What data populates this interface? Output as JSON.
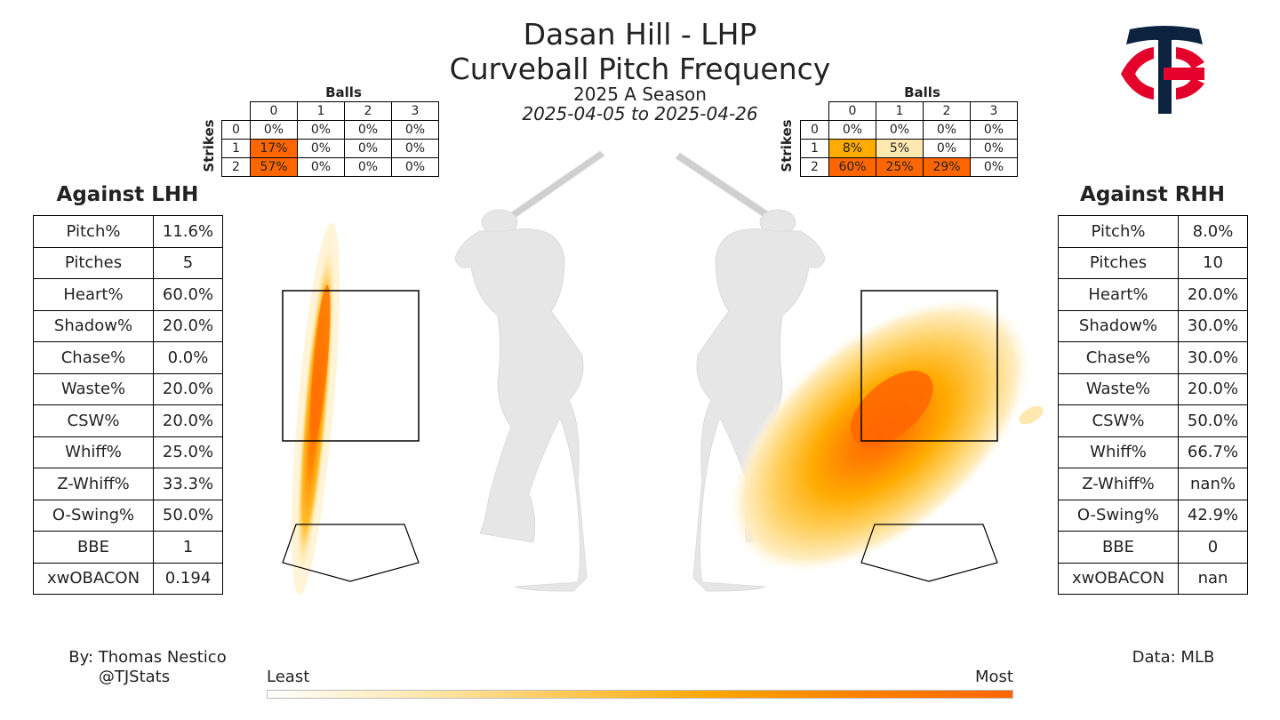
{
  "header": {
    "title": "Dasan Hill - LHP",
    "subtitle": "Curveball Pitch Frequency",
    "season": "2025 A Season",
    "date_range": "2025-04-05 to 2025-04-26"
  },
  "colors": {
    "heat_low": "#fff8e6",
    "heat_mid": "#ffaa00",
    "heat_high": "#ff6600",
    "logo_navy": "#0c2340",
    "logo_red": "#e4002b"
  },
  "icons": {
    "logo": "twins-tc-logo",
    "batter": "batter-silhouette"
  },
  "left": {
    "heading": "Against LHH",
    "stats": [
      {
        "label": "Pitch%",
        "value": "11.6%"
      },
      {
        "label": "Pitches",
        "value": "5"
      },
      {
        "label": "Heart%",
        "value": "60.0%"
      },
      {
        "label": "Shadow%",
        "value": "20.0%"
      },
      {
        "label": "Chase%",
        "value": "0.0%"
      },
      {
        "label": "Waste%",
        "value": "20.0%"
      },
      {
        "label": "CSW%",
        "value": "20.0%"
      },
      {
        "label": "Whiff%",
        "value": "25.0%"
      },
      {
        "label": "Z-Whiff%",
        "value": "33.3%"
      },
      {
        "label": "O-Swing%",
        "value": "50.0%"
      },
      {
        "label": "BBE",
        "value": "1"
      },
      {
        "label": "xwOBACON",
        "value": "0.194"
      }
    ],
    "count_table": {
      "balls_label": "Balls",
      "strikes_label": "Strikes",
      "balls": [
        "0",
        "1",
        "2",
        "3"
      ],
      "strikes": [
        "0",
        "1",
        "2"
      ],
      "cells": [
        [
          "0%",
          "0%",
          "0%",
          "0%"
        ],
        [
          "17%",
          "0%",
          "0%",
          "0%"
        ],
        [
          "57%",
          "0%",
          "0%",
          "0%"
        ]
      ],
      "values": [
        [
          0,
          0,
          0,
          0
        ],
        [
          17,
          0,
          0,
          0
        ],
        [
          57,
          0,
          0,
          0
        ]
      ]
    }
  },
  "right": {
    "heading": "Against RHH",
    "stats": [
      {
        "label": "Pitch%",
        "value": "8.0%"
      },
      {
        "label": "Pitches",
        "value": "10"
      },
      {
        "label": "Heart%",
        "value": "20.0%"
      },
      {
        "label": "Shadow%",
        "value": "30.0%"
      },
      {
        "label": "Chase%",
        "value": "30.0%"
      },
      {
        "label": "Waste%",
        "value": "20.0%"
      },
      {
        "label": "CSW%",
        "value": "50.0%"
      },
      {
        "label": "Whiff%",
        "value": "66.7%"
      },
      {
        "label": "Z-Whiff%",
        "value": "nan%"
      },
      {
        "label": "O-Swing%",
        "value": "42.9%"
      },
      {
        "label": "BBE",
        "value": "0"
      },
      {
        "label": "xwOBACON",
        "value": "nan"
      }
    ],
    "count_table": {
      "balls_label": "Balls",
      "strikes_label": "Strikes",
      "balls": [
        "0",
        "1",
        "2",
        "3"
      ],
      "strikes": [
        "0",
        "1",
        "2"
      ],
      "cells": [
        [
          "0%",
          "0%",
          "0%",
          "0%"
        ],
        [
          "8%",
          "5%",
          "0%",
          "0%"
        ],
        [
          "60%",
          "25%",
          "29%",
          "0%"
        ]
      ],
      "values": [
        [
          0,
          0,
          0,
          0
        ],
        [
          8,
          5,
          0,
          0
        ],
        [
          60,
          25,
          29,
          0
        ]
      ]
    }
  },
  "footer": {
    "credit_line1": "By: Thomas Nestico",
    "credit_line2": "@TJStats",
    "data_source": "Data: MLB",
    "legend_least": "Least",
    "legend_most": "Most"
  },
  "chart_data": {
    "type": "heatmap",
    "panels": [
      {
        "side": "vs LHH",
        "density": "narrow vertical band through the left part of the strike zone, peak at mid-zone"
      },
      {
        "side": "vs RHH",
        "density": "broad oval concentrated low-inside of zone, peak near the lower-left of the zone"
      }
    ],
    "colorbar": {
      "low_label": "Least",
      "high_label": "Most"
    }
  }
}
